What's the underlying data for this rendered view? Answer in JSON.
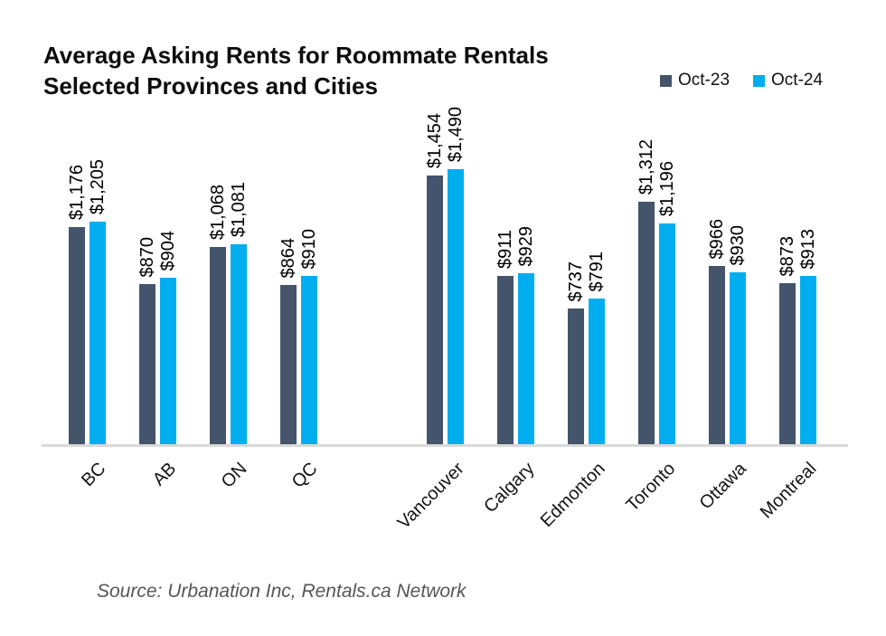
{
  "title": {
    "line1": "Average Asking Rents for Roommate Rentals",
    "line2": "Selected Provinces and Cities"
  },
  "legend": {
    "items": [
      {
        "label": "Oct-23"
      },
      {
        "label": "Oct-24"
      }
    ]
  },
  "source": "Source: Urbanation Inc, Rentals.ca Network",
  "chart_data": {
    "type": "bar",
    "title": "Average Asking Rents for Roommate Rentals",
    "subtitle": "Selected Provinces and Cities",
    "categories": [
      "BC",
      "AB",
      "ON",
      "QC",
      "Vancouver",
      "Calgary",
      "Edmonton",
      "Toronto",
      "Ottawa",
      "Montreal"
    ],
    "category_groups": {
      "provinces": [
        "BC",
        "AB",
        "ON",
        "QC"
      ],
      "cities": [
        "Vancouver",
        "Calgary",
        "Edmonton",
        "Toronto",
        "Ottawa",
        "Montreal"
      ]
    },
    "series": [
      {
        "name": "Oct-23",
        "color": "#44546A",
        "values": [
          1176,
          870,
          1068,
          864,
          1454,
          911,
          737,
          1312,
          966,
          873
        ],
        "labels": [
          "$1,176",
          "$870",
          "$1,068",
          "$864",
          "$1,454",
          "$911",
          "$737",
          "$1,312",
          "$966",
          "$873"
        ]
      },
      {
        "name": "Oct-24",
        "color": "#00AEEF",
        "values": [
          1205,
          904,
          1081,
          910,
          1490,
          929,
          791,
          1196,
          930,
          913
        ],
        "labels": [
          "$1,205",
          "$904",
          "$1,081",
          "$910",
          "$1,490",
          "$929",
          "$791",
          "$1,196",
          "$930",
          "$913"
        ]
      }
    ],
    "ylim": [
      0,
      1550
    ],
    "grid": false,
    "y_axis_visible": false,
    "legend_position": "top-right",
    "value_label_rotation": 90,
    "x_label_rotation": 45,
    "axis_line_color": "#D9D9D9",
    "source": "Source: Urbanation Inc, Rentals.ca Network"
  }
}
